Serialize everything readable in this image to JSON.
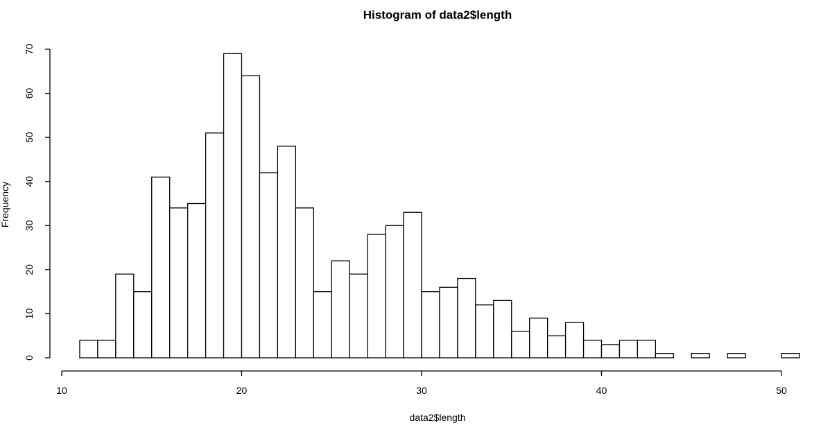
{
  "chart_data": {
    "type": "bar",
    "title": "Histogram of data2$length",
    "xlabel": "data2$length",
    "ylabel": "Frequency",
    "xlim": [
      10,
      51
    ],
    "ylim": [
      0,
      70
    ],
    "x_ticks": [
      10,
      20,
      30,
      40,
      50
    ],
    "y_ticks": [
      0,
      10,
      20,
      30,
      40,
      50,
      60,
      70
    ],
    "bin_width": 1,
    "bins": [
      {
        "start": 11,
        "end": 12,
        "count": 4
      },
      {
        "start": 12,
        "end": 13,
        "count": 4
      },
      {
        "start": 13,
        "end": 14,
        "count": 19
      },
      {
        "start": 14,
        "end": 15,
        "count": 15
      },
      {
        "start": 15,
        "end": 16,
        "count": 41
      },
      {
        "start": 16,
        "end": 17,
        "count": 34
      },
      {
        "start": 17,
        "end": 18,
        "count": 35
      },
      {
        "start": 18,
        "end": 19,
        "count": 51
      },
      {
        "start": 19,
        "end": 20,
        "count": 69
      },
      {
        "start": 20,
        "end": 21,
        "count": 64
      },
      {
        "start": 21,
        "end": 22,
        "count": 42
      },
      {
        "start": 22,
        "end": 23,
        "count": 48
      },
      {
        "start": 23,
        "end": 24,
        "count": 34
      },
      {
        "start": 24,
        "end": 25,
        "count": 15
      },
      {
        "start": 25,
        "end": 26,
        "count": 22
      },
      {
        "start": 26,
        "end": 27,
        "count": 19
      },
      {
        "start": 27,
        "end": 28,
        "count": 28
      },
      {
        "start": 28,
        "end": 29,
        "count": 30
      },
      {
        "start": 29,
        "end": 30,
        "count": 33
      },
      {
        "start": 30,
        "end": 31,
        "count": 15
      },
      {
        "start": 31,
        "end": 32,
        "count": 16
      },
      {
        "start": 32,
        "end": 33,
        "count": 18
      },
      {
        "start": 33,
        "end": 34,
        "count": 12
      },
      {
        "start": 34,
        "end": 35,
        "count": 13
      },
      {
        "start": 35,
        "end": 36,
        "count": 6
      },
      {
        "start": 36,
        "end": 37,
        "count": 9
      },
      {
        "start": 37,
        "end": 38,
        "count": 5
      },
      {
        "start": 38,
        "end": 39,
        "count": 8
      },
      {
        "start": 39,
        "end": 40,
        "count": 4
      },
      {
        "start": 40,
        "end": 41,
        "count": 3
      },
      {
        "start": 41,
        "end": 42,
        "count": 4
      },
      {
        "start": 42,
        "end": 43,
        "count": 4
      },
      {
        "start": 43,
        "end": 44,
        "count": 1
      },
      {
        "start": 44,
        "end": 45,
        "count": 0
      },
      {
        "start": 45,
        "end": 46,
        "count": 1
      },
      {
        "start": 46,
        "end": 47,
        "count": 0
      },
      {
        "start": 47,
        "end": 48,
        "count": 1
      },
      {
        "start": 48,
        "end": 49,
        "count": 0
      },
      {
        "start": 49,
        "end": 50,
        "count": 0
      },
      {
        "start": 50,
        "end": 51,
        "count": 1
      }
    ],
    "bar_fill": "#ffffff",
    "bar_stroke": "#000000"
  }
}
